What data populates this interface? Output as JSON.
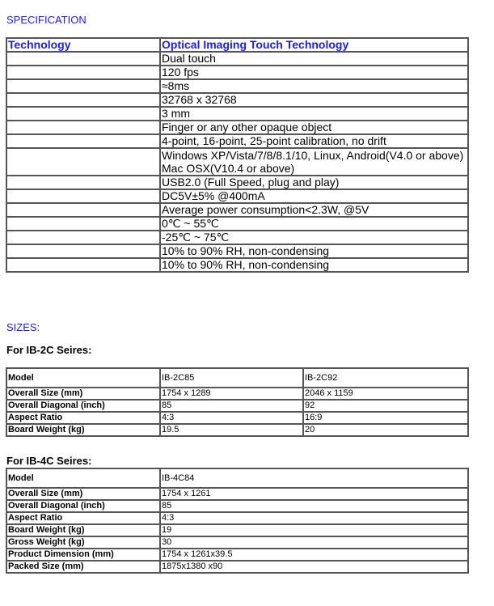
{
  "spec_heading": "SPECIFICATION",
  "spec_table": {
    "header": [
      "Technology",
      "Optical Imaging Touch Technology"
    ],
    "rows": [
      "Dual touch",
      "120 fps",
      "≈8ms",
      "32768 x 32768",
      "3 mm",
      "Finger or any other opaque object",
      "4-point, 16-point, 25-point calibration, no drift",
      "Windows XP/Vista/7/8/8.1/10, Linux, Android(V4.0 or above)",
      "Mac OSX(V10.4 or above)",
      "USB2.0 (Full Speed, plug and play)",
      "DC5V±5% @400mA",
      "Average power consumption<2.3W, @5V",
      "0℃ ~ 55℃",
      "-25℃ ~ 75℃",
      "10% to 90% RH, non-condensing",
      "10% to 90% RH, non-condensing"
    ]
  },
  "sizes_heading": "SIZES:",
  "ib2c": {
    "title": "For IB-2C Seires:",
    "header": [
      "Model",
      "IB-2C85",
      "IB-2C92"
    ],
    "rows": [
      [
        "Overall Size (mm)",
        "1754 x 1289",
        "2046 x 1159"
      ],
      [
        "Overall Diagonal (inch)",
        "85",
        "92"
      ],
      [
        "Aspect Ratio",
        "4:3",
        "16:9"
      ],
      [
        "Board Weight (kg)",
        "19.5",
        "20"
      ]
    ]
  },
  "ib4c": {
    "title": "For IB-4C Seires:",
    "header": [
      "Model",
      "IB-4C84"
    ],
    "rows": [
      [
        "Overall Size (mm)",
        "1754 x 1261"
      ],
      [
        "Overall Diagonal (inch)",
        "85"
      ],
      [
        "Aspect Ratio",
        "4:3"
      ],
      [
        "Board Weight (kg)",
        "19"
      ],
      [
        "Gross Weight (kg)",
        "30"
      ],
      [
        "Product Dimension (mm)",
        "1754 x 1261x39.5"
      ],
      [
        "Packed Size (mm)",
        "1875x1380 x90"
      ]
    ]
  }
}
